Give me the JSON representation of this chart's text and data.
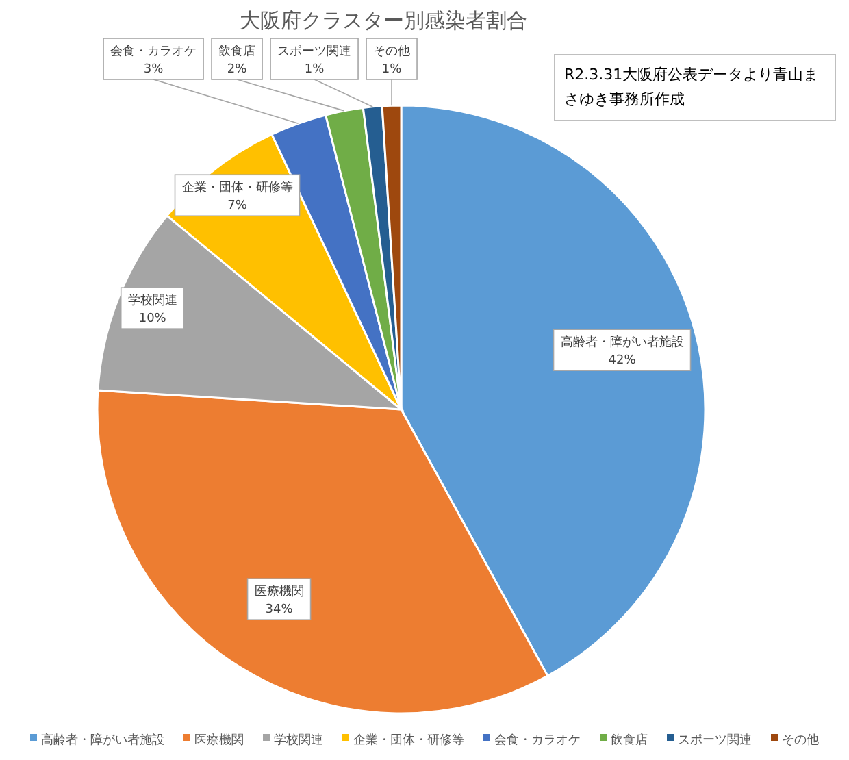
{
  "chart_data": {
    "type": "pie",
    "title": "大阪府クラスター別感染者割合",
    "categories": [
      "高齢者・障がい者施設",
      "医療機関",
      "学校関連",
      "企業・団体・研修等",
      "会食・カラオケ",
      "飲食店",
      "スポーツ関連",
      "その他"
    ],
    "values": [
      42,
      34,
      10,
      7,
      3,
      2,
      1,
      1
    ],
    "colors": [
      "#5b9bd5",
      "#ed7d31",
      "#a5a5a5",
      "#ffc000",
      "#4472c4",
      "#70ad47",
      "#255e91",
      "#9e480e"
    ],
    "value_labels": [
      "42%",
      "34%",
      "10%",
      "7%",
      "3%",
      "2%",
      "1%",
      "1%"
    ],
    "legend": "bottom",
    "annotations": [
      "R2.3.31大阪府公表データより青山まさゆき事務所作成"
    ]
  }
}
